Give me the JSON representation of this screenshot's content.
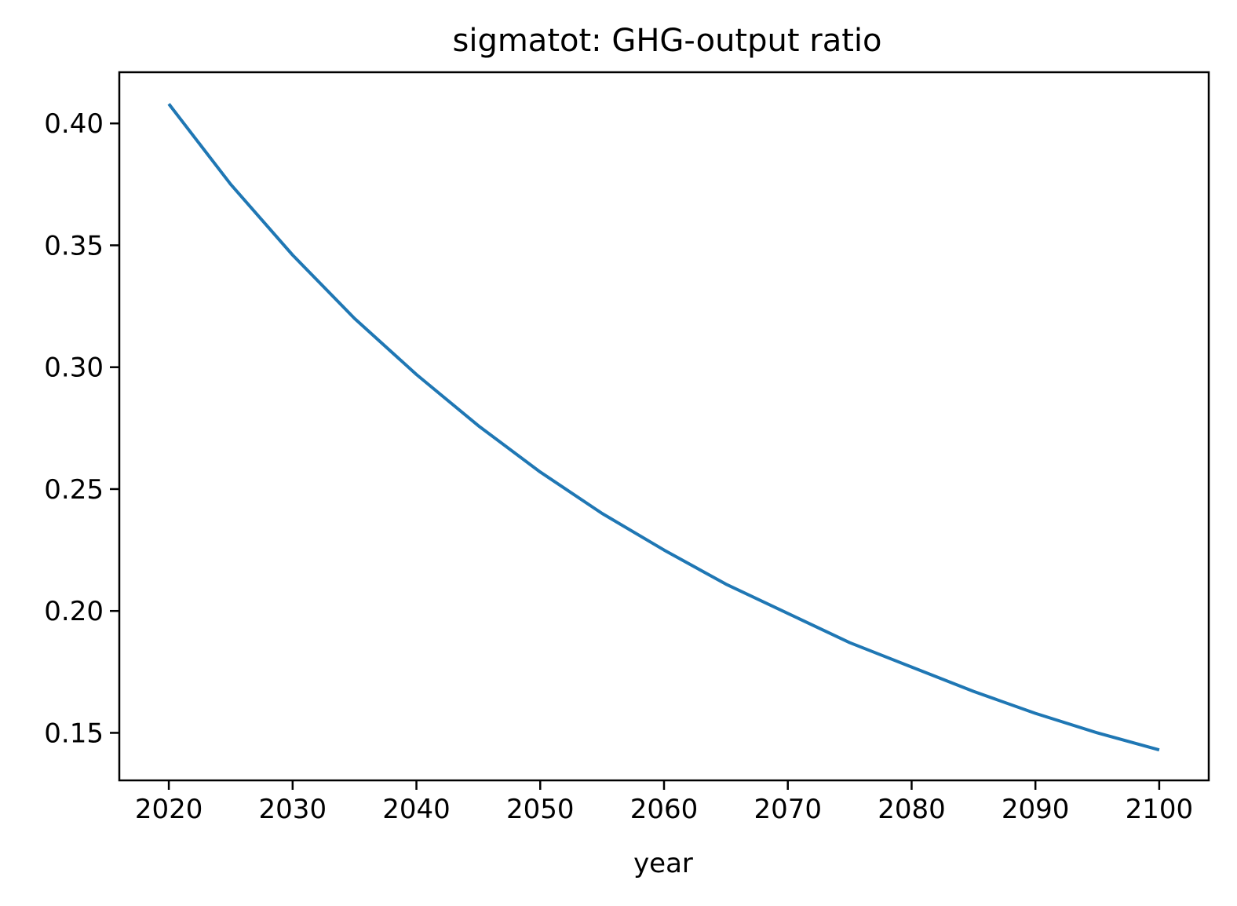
{
  "chart_data": {
    "type": "line",
    "title": "sigmatot: GHG-output ratio",
    "xlabel": "year",
    "ylabel": "",
    "xlim": [
      2016,
      2104
    ],
    "ylim": [
      0.1305,
      0.421
    ],
    "x_ticks": [
      2020,
      2030,
      2040,
      2050,
      2060,
      2070,
      2080,
      2090,
      2100
    ],
    "y_ticks": [
      0.15,
      0.2,
      0.25,
      0.3,
      0.35,
      0.4
    ],
    "x_tick_labels": [
      "2020",
      "2030",
      "2040",
      "2050",
      "2060",
      "2070",
      "2080",
      "2090",
      "2100"
    ],
    "y_tick_labels": [
      "0.15",
      "0.20",
      "0.25",
      "0.30",
      "0.35",
      "0.40"
    ],
    "grid": false,
    "legend": "none",
    "series": [
      {
        "color": "#1f77b4",
        "x": [
          2020,
          2025,
          2030,
          2035,
          2040,
          2045,
          2050,
          2055,
          2060,
          2065,
          2070,
          2075,
          2080,
          2085,
          2090,
          2095,
          2100
        ],
        "y": [
          0.408,
          0.375,
          0.346,
          0.32,
          0.297,
          0.276,
          0.257,
          0.24,
          0.225,
          0.211,
          0.199,
          0.187,
          0.177,
          0.167,
          0.158,
          0.15,
          0.143
        ]
      }
    ]
  }
}
